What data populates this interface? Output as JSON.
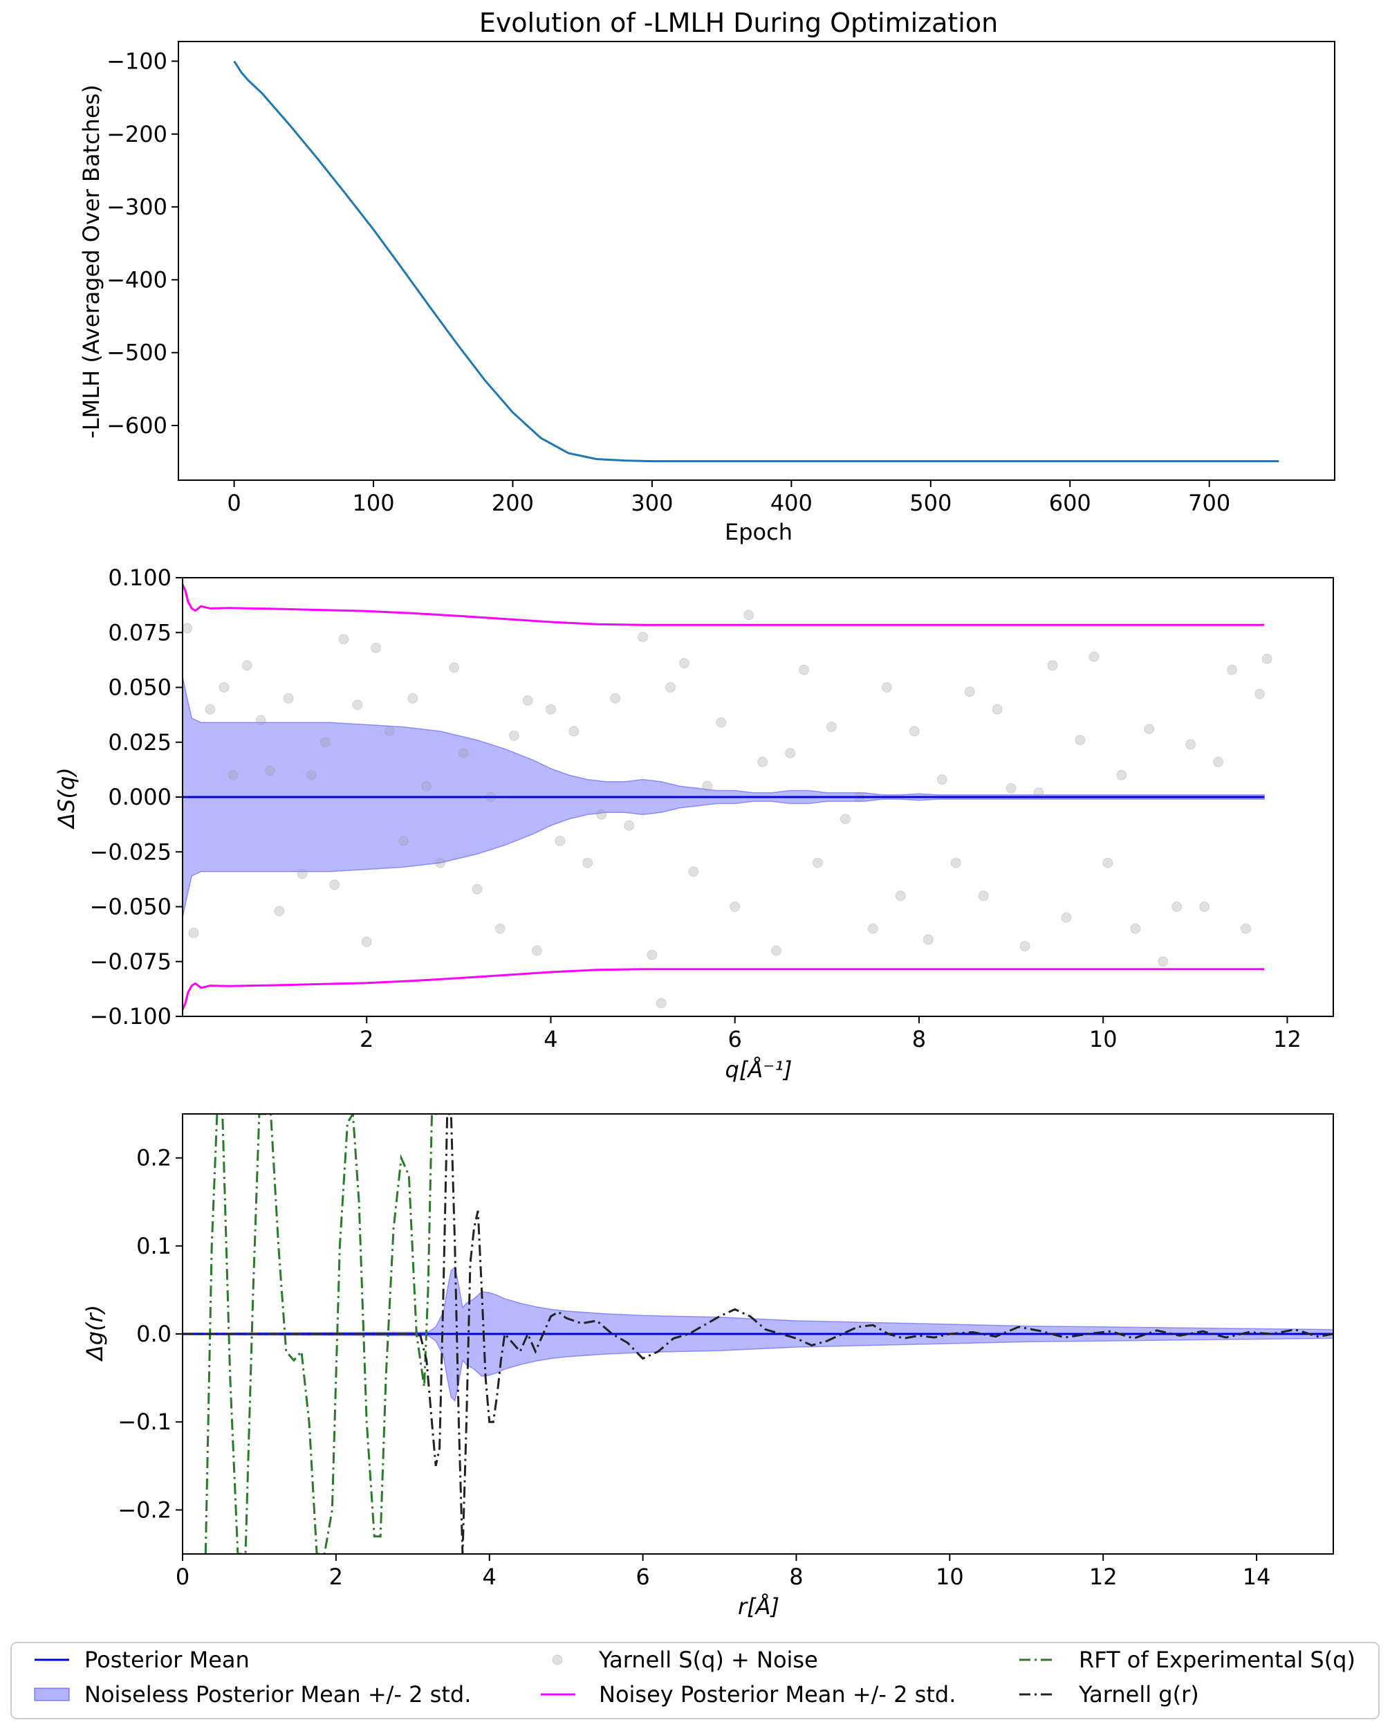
{
  "chart_data": [
    {
      "type": "line",
      "title": "Evolution of -LMLH During Optimization",
      "xlabel": "Epoch",
      "ylabel": "-LMLH (Averaged Over Batches)",
      "xlim": [
        -40,
        790
      ],
      "ylim": [
        -675,
        -73
      ],
      "xticks": [
        0,
        100,
        200,
        300,
        400,
        500,
        600,
        700
      ],
      "xtick_labels": [
        "0",
        "100",
        "200",
        "300",
        "400",
        "500",
        "600",
        "700"
      ],
      "yticks": [
        -100,
        -200,
        -300,
        -400,
        -500,
        -600
      ],
      "ytick_labels": [
        "−100",
        "−200",
        "−300",
        "−400",
        "−500",
        "−600"
      ],
      "series": [
        {
          "name": "-LMLH",
          "color": "#1f77b4",
          "x": [
            0,
            5,
            10,
            20,
            40,
            60,
            80,
            100,
            120,
            140,
            160,
            180,
            200,
            220,
            240,
            260,
            280,
            300,
            350,
            400,
            500,
            600,
            700,
            750
          ],
          "y": [
            -100,
            -115,
            -126,
            -144,
            -188,
            -234,
            -282,
            -331,
            -383,
            -436,
            -488,
            -538,
            -582,
            -617,
            -638,
            -646,
            -648,
            -649,
            -649,
            -649,
            -649,
            -649,
            -649,
            -649
          ]
        }
      ]
    },
    {
      "type": "line",
      "xlabel": "q[Å⁻¹]",
      "ylabel": "ΔS(q)",
      "xlim": [
        0,
        12.5
      ],
      "ylim": [
        -0.1,
        0.1
      ],
      "xticks": [
        2,
        4,
        6,
        8,
        10,
        12
      ],
      "xtick_labels": [
        "2",
        "4",
        "6",
        "8",
        "10",
        "12"
      ],
      "yticks": [
        0.1,
        0.075,
        0.05,
        0.025,
        0.0,
        -0.025,
        -0.05,
        -0.075,
        -0.1
      ],
      "ytick_labels": [
        "0.100",
        "0.075",
        "0.050",
        "0.025",
        "0.000",
        "−0.025",
        "−0.050",
        "−0.075",
        "−0.100"
      ],
      "posterior_mean": {
        "x": [
          0,
          11.75
        ],
        "y": [
          0,
          0
        ],
        "color": "#0000dd"
      },
      "band": {
        "x": [
          0,
          0.05,
          0.1,
          0.2,
          0.4,
          0.8,
          1.2,
          1.6,
          2.0,
          2.4,
          2.8,
          3.2,
          3.5,
          3.8,
          4.0,
          4.2,
          4.4,
          4.6,
          4.8,
          5.0,
          5.2,
          5.4,
          5.6,
          5.8,
          6.0,
          6.2,
          6.4,
          6.6,
          6.8,
          7.0,
          7.2,
          7.4,
          7.6,
          7.8,
          8.0,
          8.2,
          8.4,
          8.6,
          8.8,
          9.0,
          9.5,
          10.0,
          10.5,
          11.0,
          11.5,
          11.75
        ],
        "upper": [
          0.055,
          0.045,
          0.036,
          0.034,
          0.034,
          0.034,
          0.034,
          0.034,
          0.033,
          0.032,
          0.03,
          0.026,
          0.022,
          0.017,
          0.013,
          0.01,
          0.008,
          0.007,
          0.007,
          0.008,
          0.007,
          0.005,
          0.004,
          0.003,
          0.003,
          0.002,
          0.002,
          0.003,
          0.003,
          0.002,
          0.002,
          0.002,
          0.001,
          0.001,
          0.0015,
          0.001,
          0.001,
          0.001,
          0.001,
          0.001,
          0.001,
          0.001,
          0.001,
          0.001,
          0.001,
          0.001
        ],
        "lower": [
          -0.055,
          -0.045,
          -0.036,
          -0.034,
          -0.034,
          -0.034,
          -0.034,
          -0.034,
          -0.033,
          -0.032,
          -0.03,
          -0.026,
          -0.022,
          -0.017,
          -0.013,
          -0.01,
          -0.008,
          -0.007,
          -0.007,
          -0.008,
          -0.007,
          -0.005,
          -0.004,
          -0.003,
          -0.003,
          -0.002,
          -0.002,
          -0.003,
          -0.003,
          -0.002,
          -0.002,
          -0.002,
          -0.001,
          -0.001,
          -0.0015,
          -0.001,
          -0.001,
          -0.001,
          -0.001,
          -0.001,
          -0.001,
          -0.001,
          -0.001,
          -0.001,
          -0.001,
          -0.001
        ],
        "color": "#0000ff"
      },
      "noisy_band": {
        "x": [
          0,
          0.03,
          0.06,
          0.1,
          0.14,
          0.2,
          0.3,
          0.5,
          1.0,
          1.5,
          2.0,
          2.5,
          3.0,
          3.5,
          4.0,
          4.5,
          5.0,
          6.0,
          7.0,
          8.0,
          9.0,
          10.0,
          11.0,
          11.75
        ],
        "upper": [
          0.097,
          0.094,
          0.089,
          0.086,
          0.085,
          0.087,
          0.086,
          0.0862,
          0.0858,
          0.0853,
          0.0848,
          0.0838,
          0.0826,
          0.0812,
          0.0798,
          0.0788,
          0.0785,
          0.0785,
          0.0785,
          0.0785,
          0.0785,
          0.0785,
          0.0785,
          0.0785
        ],
        "lower": [
          -0.097,
          -0.094,
          -0.089,
          -0.086,
          -0.085,
          -0.087,
          -0.086,
          -0.0862,
          -0.0858,
          -0.0853,
          -0.0848,
          -0.0838,
          -0.0826,
          -0.0812,
          -0.0798,
          -0.0788,
          -0.0785,
          -0.0785,
          -0.0785,
          -0.0785,
          -0.0785,
          -0.0785,
          -0.0785,
          -0.0785
        ],
        "color": "#ff00ff"
      },
      "scatter": {
        "name": "Yarnell S(q) + Noise",
        "color": "#999999",
        "points": [
          [
            0.05,
            0.077
          ],
          [
            0.12,
            -0.062
          ],
          [
            0.3,
            0.04
          ],
          [
            0.45,
            0.05
          ],
          [
            0.55,
            0.01
          ],
          [
            0.7,
            0.06
          ],
          [
            0.85,
            0.035
          ],
          [
            0.95,
            0.012
          ],
          [
            1.05,
            -0.052
          ],
          [
            1.15,
            0.045
          ],
          [
            1.3,
            -0.035
          ],
          [
            1.4,
            0.01
          ],
          [
            1.55,
            0.025
          ],
          [
            1.65,
            -0.04
          ],
          [
            1.75,
            0.072
          ],
          [
            1.9,
            0.042
          ],
          [
            2.0,
            -0.066
          ],
          [
            2.1,
            0.068
          ],
          [
            2.25,
            0.03
          ],
          [
            2.4,
            -0.02
          ],
          [
            2.5,
            0.045
          ],
          [
            2.65,
            0.005
          ],
          [
            2.8,
            -0.03
          ],
          [
            2.95,
            0.059
          ],
          [
            3.05,
            0.02
          ],
          [
            3.2,
            -0.042
          ],
          [
            3.35,
            0.0
          ],
          [
            3.45,
            -0.06
          ],
          [
            3.6,
            0.028
          ],
          [
            3.75,
            0.044
          ],
          [
            3.85,
            -0.07
          ],
          [
            4.0,
            0.04
          ],
          [
            4.1,
            -0.02
          ],
          [
            4.25,
            0.03
          ],
          [
            4.4,
            -0.03
          ],
          [
            4.55,
            -0.008
          ],
          [
            4.7,
            0.045
          ],
          [
            4.85,
            -0.013
          ],
          [
            5.0,
            0.073
          ],
          [
            5.1,
            -0.072
          ],
          [
            5.2,
            -0.094
          ],
          [
            5.3,
            0.05
          ],
          [
            5.45,
            0.061
          ],
          [
            5.55,
            -0.034
          ],
          [
            5.7,
            0.005
          ],
          [
            5.85,
            0.034
          ],
          [
            6.0,
            -0.05
          ],
          [
            6.15,
            0.083
          ],
          [
            6.3,
            0.016
          ],
          [
            6.45,
            -0.07
          ],
          [
            6.6,
            0.02
          ],
          [
            6.75,
            0.058
          ],
          [
            6.9,
            -0.03
          ],
          [
            7.05,
            0.032
          ],
          [
            7.2,
            -0.01
          ],
          [
            7.35,
            0.0
          ],
          [
            7.5,
            -0.06
          ],
          [
            7.65,
            0.05
          ],
          [
            7.8,
            -0.045
          ],
          [
            7.95,
            0.03
          ],
          [
            8.1,
            -0.065
          ],
          [
            8.25,
            0.008
          ],
          [
            8.4,
            -0.03
          ],
          [
            8.55,
            0.048
          ],
          [
            8.7,
            -0.045
          ],
          [
            8.85,
            0.04
          ],
          [
            9.0,
            0.004
          ],
          [
            9.15,
            -0.068
          ],
          [
            9.3,
            0.002
          ],
          [
            9.45,
            0.06
          ],
          [
            9.6,
            -0.055
          ],
          [
            9.75,
            0.026
          ],
          [
            9.9,
            0.064
          ],
          [
            10.05,
            -0.03
          ],
          [
            10.2,
            0.01
          ],
          [
            10.35,
            -0.06
          ],
          [
            10.5,
            0.031
          ],
          [
            10.65,
            -0.075
          ],
          [
            10.8,
            -0.05
          ],
          [
            10.95,
            0.024
          ],
          [
            11.1,
            -0.05
          ],
          [
            11.25,
            0.016
          ],
          [
            11.4,
            0.058
          ],
          [
            11.55,
            -0.06
          ],
          [
            11.7,
            0.047
          ],
          [
            11.78,
            0.063
          ]
        ]
      }
    },
    {
      "type": "line",
      "xlabel": "r[Å]",
      "ylabel": "Δg(r)",
      "xlim": [
        0,
        15
      ],
      "ylim": [
        -0.25,
        0.25
      ],
      "xticks": [
        0,
        2,
        4,
        6,
        8,
        10,
        12,
        14
      ],
      "xtick_labels": [
        "0",
        "2",
        "4",
        "6",
        "8",
        "10",
        "12",
        "14"
      ],
      "yticks": [
        0.2,
        0.1,
        0.0,
        -0.1,
        -0.2
      ],
      "ytick_labels": [
        "0.2",
        "0.1",
        "0.0",
        "−0.1",
        "−0.2"
      ],
      "posterior_mean": {
        "x": [
          0,
          15
        ],
        "y": [
          0,
          0
        ],
        "color": "#0000dd"
      },
      "band": {
        "x": [
          0,
          3.2,
          3.3,
          3.4,
          3.45,
          3.5,
          3.55,
          3.6,
          3.65,
          3.7,
          3.8,
          3.9,
          4.0,
          4.1,
          4.2,
          4.4,
          4.6,
          4.8,
          5.0,
          5.5,
          6.0,
          6.5,
          7.0,
          7.5,
          8.0,
          9.0,
          10.0,
          11.0,
          12.0,
          13.0,
          14.0,
          15.0
        ],
        "upper": [
          0.001,
          0.002,
          0.008,
          0.025,
          0.05,
          0.072,
          0.076,
          0.055,
          0.03,
          0.035,
          0.04,
          0.048,
          0.047,
          0.044,
          0.04,
          0.035,
          0.031,
          0.028,
          0.026,
          0.023,
          0.021,
          0.02,
          0.019,
          0.017,
          0.015,
          0.013,
          0.011,
          0.009,
          0.008,
          0.007,
          0.006,
          0.005
        ],
        "lower": [
          -0.001,
          -0.002,
          -0.008,
          -0.025,
          -0.05,
          -0.072,
          -0.076,
          -0.055,
          -0.03,
          -0.035,
          -0.04,
          -0.048,
          -0.047,
          -0.044,
          -0.04,
          -0.035,
          -0.031,
          -0.028,
          -0.026,
          -0.023,
          -0.021,
          -0.02,
          -0.019,
          -0.017,
          -0.015,
          -0.013,
          -0.011,
          -0.009,
          -0.008,
          -0.007,
          -0.006,
          -0.005
        ],
        "color": "#0000ff"
      },
      "series": [
        {
          "name": "RFT of Experimental S(q)",
          "color": "#2a7a2a",
          "x": [
            0.3,
            0.38,
            0.45,
            0.52,
            0.62,
            0.72,
            0.82,
            0.92,
            1.0,
            1.07,
            1.15,
            1.25,
            1.35,
            1.45,
            1.55,
            1.65,
            1.75,
            1.85,
            1.95,
            2.05,
            2.15,
            2.22,
            2.3,
            2.4,
            2.5,
            2.58,
            2.65,
            2.75,
            2.85,
            2.95,
            3.05,
            3.15,
            3.2,
            3.25,
            3.3,
            3.35
          ],
          "y": [
            -0.25,
            0.1,
            0.25,
            0.25,
            -0.05,
            -0.25,
            -0.25,
            0.05,
            0.25,
            0.25,
            0.25,
            0.1,
            -0.02,
            -0.03,
            -0.02,
            -0.1,
            -0.25,
            -0.25,
            -0.2,
            0.1,
            0.24,
            0.25,
            0.15,
            -0.1,
            -0.23,
            -0.23,
            -0.05,
            0.12,
            0.2,
            0.18,
            0.0,
            -0.06,
            0.05,
            0.25,
            0.25,
            0.25
          ]
        },
        {
          "name": "Yarnell g(r)",
          "color": "#222222",
          "x": [
            0,
            3.0,
            3.1,
            3.18,
            3.25,
            3.3,
            3.35,
            3.4,
            3.45,
            3.5,
            3.55,
            3.6,
            3.65,
            3.7,
            3.75,
            3.8,
            3.85,
            3.9,
            3.95,
            4.0,
            4.05,
            4.1,
            4.15,
            4.2,
            4.3,
            4.4,
            4.5,
            4.6,
            4.7,
            4.8,
            4.9,
            5.0,
            5.2,
            5.4,
            5.6,
            5.8,
            6.0,
            6.2,
            6.4,
            6.6,
            6.8,
            7.0,
            7.2,
            7.4,
            7.6,
            7.8,
            8.0,
            8.2,
            8.4,
            8.6,
            8.8,
            9.0,
            9.2,
            9.4,
            9.6,
            9.8,
            10.0,
            10.3,
            10.6,
            10.9,
            11.2,
            11.5,
            11.8,
            12.1,
            12.4,
            12.7,
            13.0,
            13.3,
            13.6,
            13.9,
            14.2,
            14.5,
            14.8,
            15.0
          ],
          "y": [
            0,
            0,
            -0.002,
            -0.03,
            -0.1,
            -0.15,
            -0.13,
            0.05,
            0.25,
            0.25,
            0.1,
            -0.1,
            -0.25,
            -0.1,
            0.08,
            0.12,
            0.14,
            0.05,
            -0.05,
            -0.1,
            -0.1,
            -0.07,
            -0.03,
            0.0,
            -0.01,
            -0.02,
            0.0,
            -0.02,
            0.0,
            0.02,
            0.025,
            0.018,
            0.012,
            0.015,
            0.0,
            -0.01,
            -0.028,
            -0.02,
            -0.005,
            0.0,
            0.01,
            0.02,
            0.028,
            0.02,
            0.005,
            0.0,
            -0.005,
            -0.013,
            -0.008,
            0.0,
            0.008,
            0.01,
            0.0,
            -0.005,
            -0.002,
            -0.004,
            0.0,
            0.002,
            -0.003,
            0.008,
            0.003,
            -0.004,
            0.0,
            0.003,
            -0.005,
            0.004,
            -0.002,
            0.003,
            -0.004,
            0.002,
            0.0,
            0.005,
            -0.003,
            0.0
          ]
        }
      ]
    }
  ],
  "legend": {
    "placement": "bottom",
    "items": [
      {
        "label": "Posterior Mean",
        "kind": "line",
        "color": "#0000dd"
      },
      {
        "label": "Noiseless Posterior Mean +/- 2 std.",
        "kind": "patch",
        "color": "#0000ff"
      },
      {
        "label": "Yarnell S(q) + Noise",
        "kind": "marker",
        "color": "#999999"
      },
      {
        "label": "Noisey Posterior Mean +/- 2 std.",
        "kind": "line",
        "color": "#ff00ff"
      },
      {
        "label": "RFT of Experimental S(q)",
        "kind": "dashdot",
        "color": "#2a7a2a"
      },
      {
        "label": "Yarnell g(r)",
        "kind": "dashdot",
        "color": "#222222"
      }
    ]
  }
}
